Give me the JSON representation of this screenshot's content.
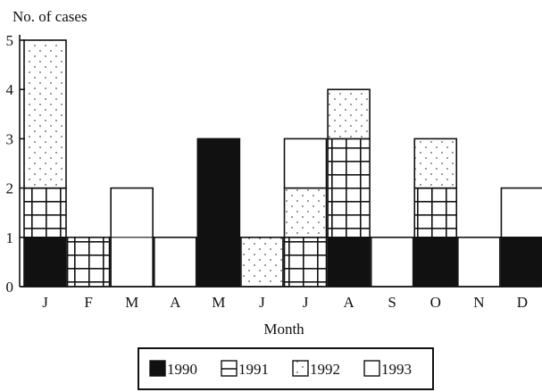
{
  "chart_data": {
    "type": "bar",
    "stacked": true,
    "title": "",
    "xlabel": "Month",
    "ylabel": "No. of cases",
    "ylim": [
      0,
      5
    ],
    "yticks": [
      "0",
      "1",
      "2",
      "3",
      "4",
      "5"
    ],
    "categories": [
      "J",
      "F",
      "M",
      "A",
      "M",
      "J",
      "J",
      "A",
      "S",
      "O",
      "N",
      "D"
    ],
    "series": [
      {
        "name": "1990",
        "pattern": "solid",
        "values": [
          1,
          0,
          0,
          0,
          3,
          0,
          0,
          1,
          0,
          1,
          0,
          1
        ]
      },
      {
        "name": "1991",
        "pattern": "grid",
        "values": [
          1,
          1,
          0,
          0,
          0,
          0,
          1,
          2,
          0,
          1,
          0,
          0
        ]
      },
      {
        "name": "1992",
        "pattern": "dots",
        "values": [
          3,
          0,
          0,
          0,
          0,
          1,
          1,
          1,
          0,
          1,
          0,
          0
        ]
      },
      {
        "name": "1993",
        "pattern": "blank",
        "values": [
          0,
          0,
          2,
          1,
          0,
          0,
          1,
          0,
          1,
          0,
          1,
          1
        ]
      }
    ],
    "grid": false,
    "legend_position": "bottom-center",
    "colors": {
      "ink": "#111111",
      "background": "#ffffff",
      "dots": "#666666"
    }
  }
}
